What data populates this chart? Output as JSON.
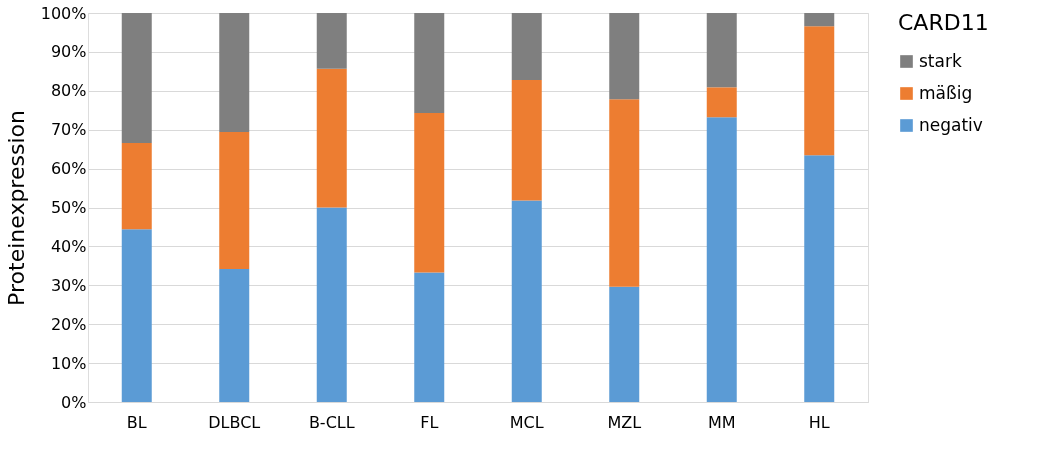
{
  "chart_data": {
    "type": "bar",
    "stacked": true,
    "ylabel": "Proteinexpression",
    "legend_title": "CARD11",
    "legend": "right",
    "grid": "y",
    "categories": [
      "BL",
      "DLBCL",
      "B-CLL",
      "FL",
      "MCL",
      "MZL",
      "MM",
      "HL"
    ],
    "series": [
      {
        "name": "negativ",
        "color": "#5b9bd5",
        "values": [
          44.4,
          34.2,
          50.0,
          33.3,
          51.8,
          29.6,
          73.2,
          63.4
        ]
      },
      {
        "name": "mäßig",
        "color": "#ed7d31",
        "values": [
          22.2,
          35.2,
          35.7,
          41.0,
          31.0,
          48.2,
          7.7,
          33.2
        ]
      },
      {
        "name": "stark",
        "color": "#7f7f7f",
        "values": [
          33.4,
          30.6,
          14.3,
          25.7,
          17.2,
          22.2,
          19.1,
          3.4
        ]
      }
    ],
    "ylim": [
      0,
      100
    ],
    "yticks": [
      {
        "value": 0,
        "label": "0%"
      },
      {
        "value": 10,
        "label": "10%"
      },
      {
        "value": 20,
        "label": "20%"
      },
      {
        "value": 30,
        "label": "30%"
      },
      {
        "value": 40,
        "label": "40%"
      },
      {
        "value": 50,
        "label": "50%"
      },
      {
        "value": 60,
        "label": "60%"
      },
      {
        "value": 70,
        "label": "70%"
      },
      {
        "value": 80,
        "label": "80%"
      },
      {
        "value": 90,
        "label": "90%"
      },
      {
        "value": 100,
        "label": "100%"
      }
    ]
  }
}
